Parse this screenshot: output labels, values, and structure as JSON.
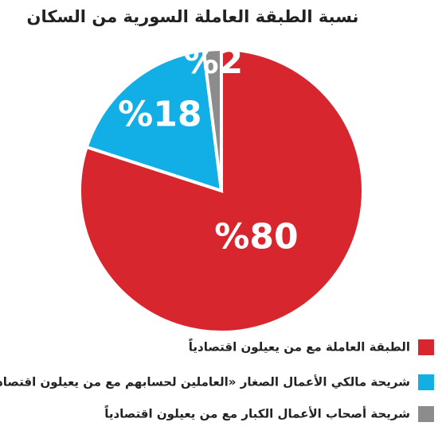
{
  "chart_data": {
    "type": "pie",
    "title": "نسبة الطبقة العاملة السورية من السكان",
    "categories": [
      "الطبقة العاملة مع من يعيلون اقتصادياً",
      "شريحة مالكي الأعمال الصغار «العاملين لحسابهم مع من يعيلون اقتصادياً",
      "شريحة أصحاب الأعمال الكبار مع من يعيلون اقتصادياً"
    ],
    "values": [
      80,
      18,
      2
    ],
    "value_labels": [
      "%80",
      "%18",
      "%2"
    ],
    "colors": [
      "#d7262e",
      "#12aee6",
      "#8c8c8c"
    ]
  }
}
